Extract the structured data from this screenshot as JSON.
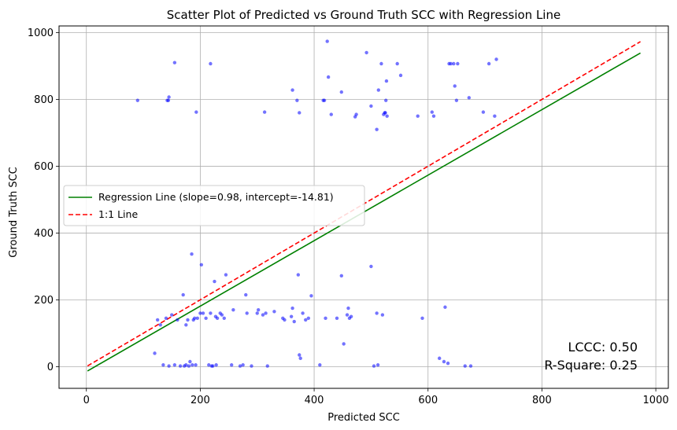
{
  "chart_data": {
    "type": "scatter",
    "title": "Scatter Plot of Predicted vs Ground Truth SCC with Regression Line",
    "xlabel": "Predicted SCC",
    "ylabel": "Ground Truth SCC",
    "xlim": [
      -48,
      1022
    ],
    "ylim": [
      -65,
      1020
    ],
    "xticks": [
      0,
      200,
      400,
      600,
      800,
      1000
    ],
    "yticks": [
      0,
      200,
      400,
      600,
      800,
      1000
    ],
    "grid": true,
    "legend_position": "center-left",
    "colors": {
      "points": "#0000ff",
      "regression": "#008000",
      "identity": "#ff0000"
    },
    "series": [
      {
        "name": "",
        "kind": "scatter",
        "points": [
          [
            90,
            797
          ],
          [
            142,
            797
          ],
          [
            145,
            807
          ],
          [
            144,
            797
          ],
          [
            155,
            910
          ],
          [
            193,
            762
          ],
          [
            218,
            907
          ],
          [
            313,
            762
          ],
          [
            362,
            828
          ],
          [
            370,
            797
          ],
          [
            374,
            760
          ],
          [
            416,
            797
          ],
          [
            418,
            797
          ],
          [
            423,
            974
          ],
          [
            425,
            867
          ],
          [
            430,
            755
          ],
          [
            448,
            822
          ],
          [
            472,
            748
          ],
          [
            474,
            755
          ],
          [
            492,
            940
          ],
          [
            500,
            780
          ],
          [
            510,
            710
          ],
          [
            513,
            828
          ],
          [
            518,
            907
          ],
          [
            522,
            755
          ],
          [
            524,
            760
          ],
          [
            525,
            760
          ],
          [
            526,
            797
          ],
          [
            527,
            855
          ],
          [
            528,
            750
          ],
          [
            546,
            907
          ],
          [
            552,
            872
          ],
          [
            582,
            750
          ],
          [
            607,
            762
          ],
          [
            610,
            750
          ],
          [
            637,
            907
          ],
          [
            640,
            907
          ],
          [
            645,
            907
          ],
          [
            647,
            840
          ],
          [
            650,
            797
          ],
          [
            652,
            907
          ],
          [
            672,
            805
          ],
          [
            697,
            762
          ],
          [
            707,
            907
          ],
          [
            717,
            750
          ],
          [
            720,
            920
          ],
          [
            120,
            40
          ],
          [
            125,
            140
          ],
          [
            130,
            125
          ],
          [
            135,
            5
          ],
          [
            140,
            145
          ],
          [
            145,
            2
          ],
          [
            150,
            155
          ],
          [
            155,
            5
          ],
          [
            160,
            140
          ],
          [
            165,
            2
          ],
          [
            170,
            215
          ],
          [
            172,
            2
          ],
          [
            175,
            5
          ],
          [
            175,
            125
          ],
          [
            178,
            140
          ],
          [
            180,
            2
          ],
          [
            182,
            15
          ],
          [
            185,
            337
          ],
          [
            186,
            5
          ],
          [
            188,
            140
          ],
          [
            190,
            145
          ],
          [
            192,
            5
          ],
          [
            195,
            145
          ],
          [
            200,
            160
          ],
          [
            202,
            305
          ],
          [
            205,
            160
          ],
          [
            210,
            145
          ],
          [
            215,
            5
          ],
          [
            218,
            160
          ],
          [
            220,
            2
          ],
          [
            222,
            2
          ],
          [
            225,
            255
          ],
          [
            227,
            150
          ],
          [
            228,
            5
          ],
          [
            230,
            145
          ],
          [
            235,
            160
          ],
          [
            238,
            155
          ],
          [
            242,
            145
          ],
          [
            245,
            275
          ],
          [
            255,
            5
          ],
          [
            258,
            170
          ],
          [
            270,
            2
          ],
          [
            275,
            5
          ],
          [
            280,
            215
          ],
          [
            282,
            160
          ],
          [
            290,
            2
          ],
          [
            300,
            160
          ],
          [
            302,
            170
          ],
          [
            310,
            155
          ],
          [
            315,
            160
          ],
          [
            318,
            2
          ],
          [
            330,
            165
          ],
          [
            345,
            145
          ],
          [
            348,
            140
          ],
          [
            360,
            150
          ],
          [
            362,
            175
          ],
          [
            365,
            135
          ],
          [
            372,
            275
          ],
          [
            374,
            35
          ],
          [
            376,
            25
          ],
          [
            380,
            160
          ],
          [
            385,
            140
          ],
          [
            390,
            145
          ],
          [
            395,
            212
          ],
          [
            410,
            5
          ],
          [
            420,
            145
          ],
          [
            440,
            145
          ],
          [
            448,
            272
          ],
          [
            452,
            68
          ],
          [
            458,
            155
          ],
          [
            460,
            175
          ],
          [
            462,
            145
          ],
          [
            465,
            150
          ],
          [
            500,
            300
          ],
          [
            505,
            2
          ],
          [
            510,
            160
          ],
          [
            512,
            5
          ],
          [
            520,
            155
          ],
          [
            590,
            145
          ],
          [
            620,
            25
          ],
          [
            628,
            15
          ],
          [
            630,
            178
          ],
          [
            635,
            10
          ],
          [
            665,
            2
          ],
          [
            675,
            2
          ]
        ]
      },
      {
        "name": "Regression Line (slope=0.98, intercept=-14.81)",
        "kind": "line",
        "points": [
          [
            2,
            -13
          ],
          [
            973,
            939
          ]
        ]
      },
      {
        "name": "1:1 Line",
        "kind": "line-dashed",
        "points": [
          [
            2,
            2
          ],
          [
            973,
            973
          ]
        ]
      }
    ],
    "annotations": [
      {
        "text": "LCCC: 0.50",
        "position": "bottom-right"
      },
      {
        "text": "R-Square: 0.25",
        "position": "bottom-right"
      }
    ]
  }
}
